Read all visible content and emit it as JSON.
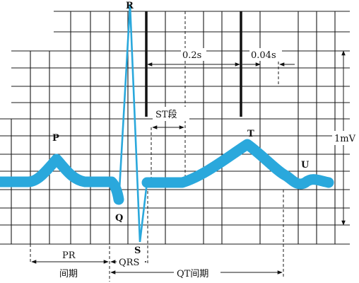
{
  "waves": {
    "p": "P",
    "q": "Q",
    "r": "R",
    "s": "S",
    "t": "T",
    "u": "U"
  },
  "measures": {
    "interval_02s": "0.2s",
    "interval_004s": "0.04s",
    "st_segment": "ST段",
    "amplitude": "1mV",
    "pr_line1": "PR",
    "pr_line2": "间期",
    "qrs": "QRS",
    "qt": "QT间期"
  },
  "colors": {
    "trace": "#2aa8dc",
    "grid": "#1a1a1a"
  }
}
